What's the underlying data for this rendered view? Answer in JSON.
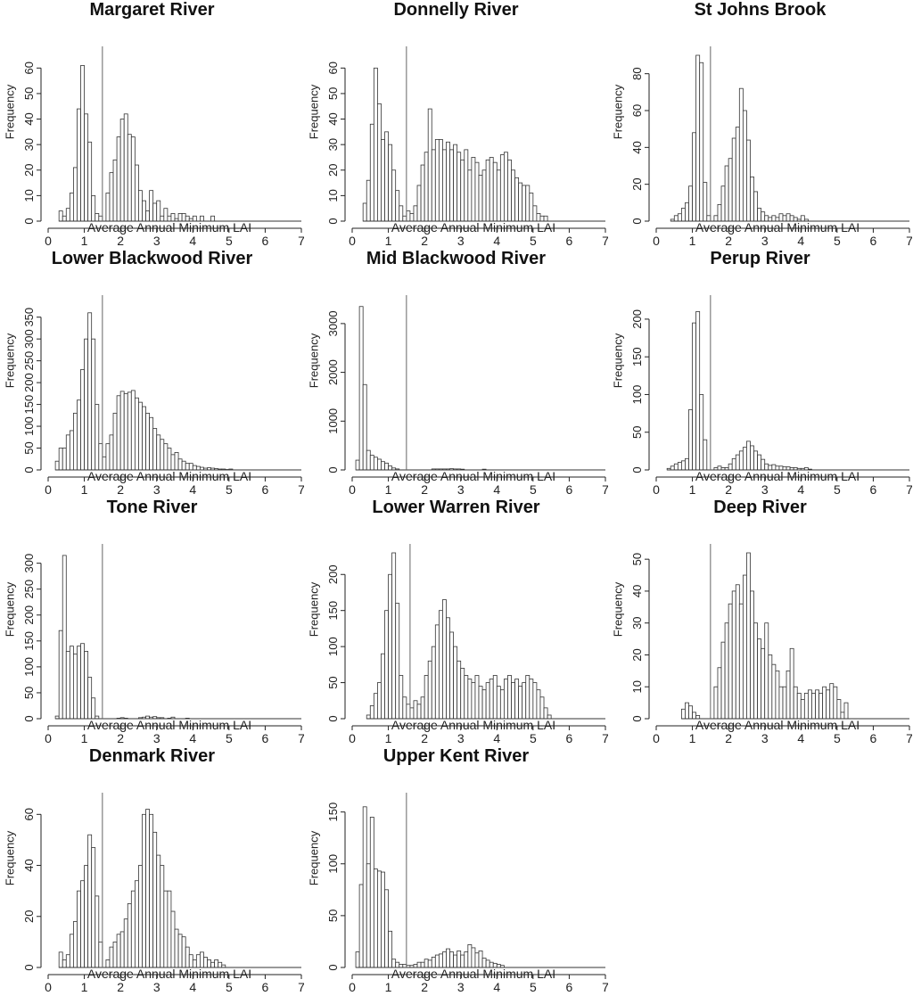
{
  "chart_data": [
    {
      "type": "bar",
      "title": "Margaret River",
      "xlabel": "Average Annual Minimum LAI",
      "ylabel": "Frequency",
      "xlim": [
        0,
        7
      ],
      "ylim": [
        0,
        65
      ],
      "yticks": [
        0,
        10,
        20,
        30,
        40,
        50,
        60
      ],
      "xticks": [
        0,
        1,
        2,
        3,
        4,
        5,
        6,
        7
      ],
      "bin_width": 0.1,
      "threshold": 1.5,
      "bins_start": [
        0.3,
        0.4,
        0.5,
        0.6,
        0.7,
        0.8,
        0.9,
        1.0,
        1.1,
        1.2,
        1.3,
        1.4,
        1.5,
        1.6,
        1.7,
        1.8,
        1.9,
        2.0,
        2.1,
        2.2,
        2.3,
        2.4,
        2.5,
        2.6,
        2.7,
        2.8,
        2.9,
        3.0,
        3.1,
        3.2,
        3.3,
        3.4,
        3.5,
        3.6,
        3.7,
        3.8,
        3.9,
        4.0,
        4.1,
        4.2,
        4.3,
        4.4,
        4.5
      ],
      "values": [
        4,
        2,
        5,
        11,
        21,
        44,
        61,
        42,
        31,
        10,
        3,
        2,
        0,
        11,
        19,
        24,
        33,
        40,
        42,
        34,
        33,
        22,
        12,
        8,
        4,
        12,
        7,
        8,
        2,
        5,
        2,
        3,
        1,
        3,
        3,
        2,
        1,
        2,
        0,
        2,
        0,
        0,
        2
      ]
    },
    {
      "type": "bar",
      "title": "Donnelly River",
      "xlabel": "Average Annual Minimum LAI",
      "ylabel": "Frequency",
      "xlim": [
        0,
        7
      ],
      "ylim": [
        0,
        65
      ],
      "yticks": [
        0,
        10,
        20,
        30,
        40,
        50,
        60
      ],
      "xticks": [
        0,
        1,
        2,
        3,
        4,
        5,
        6,
        7
      ],
      "bin_width": 0.1,
      "threshold": 1.5,
      "bins_start": [
        0.3,
        0.4,
        0.5,
        0.6,
        0.7,
        0.8,
        0.9,
        1.0,
        1.1,
        1.2,
        1.3,
        1.4,
        1.5,
        1.6,
        1.7,
        1.8,
        1.9,
        2.0,
        2.1,
        2.2,
        2.3,
        2.4,
        2.5,
        2.6,
        2.7,
        2.8,
        2.9,
        3.0,
        3.1,
        3.2,
        3.3,
        3.4,
        3.5,
        3.6,
        3.7,
        3.8,
        3.9,
        4.0,
        4.1,
        4.2,
        4.3,
        4.4,
        4.5,
        4.6,
        4.7,
        4.8,
        4.9,
        5.0,
        5.1,
        5.2,
        5.3
      ],
      "values": [
        7,
        16,
        38,
        60,
        46,
        32,
        35,
        30,
        20,
        12,
        6,
        2,
        4,
        3,
        6,
        14,
        22,
        27,
        44,
        28,
        32,
        32,
        28,
        31,
        28,
        30,
        27,
        24,
        28,
        20,
        25,
        23,
        18,
        20,
        24,
        25,
        23,
        20,
        26,
        27,
        24,
        20,
        17,
        15,
        14,
        14,
        11,
        6,
        3,
        2,
        2
      ]
    },
    {
      "type": "bar",
      "title": "St Johns Brook",
      "xlabel": "Average Annual Minimum LAI",
      "ylabel": "Frequency",
      "xlim": [
        0,
        7
      ],
      "ylim": [
        0,
        90
      ],
      "yticks": [
        0,
        20,
        40,
        60,
        80
      ],
      "xticks": [
        0,
        1,
        2,
        3,
        4,
        5,
        6,
        7
      ],
      "bin_width": 0.1,
      "threshold": 1.5,
      "bins_start": [
        0.4,
        0.5,
        0.6,
        0.7,
        0.8,
        0.9,
        1.0,
        1.1,
        1.2,
        1.3,
        1.4,
        1.5,
        1.6,
        1.7,
        1.8,
        1.9,
        2.0,
        2.1,
        2.2,
        2.3,
        2.4,
        2.5,
        2.6,
        2.7,
        2.8,
        2.9,
        3.0,
        3.1,
        3.2,
        3.3,
        3.4,
        3.5,
        3.6,
        3.7,
        3.8,
        3.9,
        4.0,
        4.1
      ],
      "values": [
        1,
        3,
        4,
        7,
        10,
        19,
        48,
        90,
        86,
        21,
        3,
        0,
        3,
        9,
        19,
        30,
        34,
        45,
        51,
        72,
        60,
        44,
        24,
        16,
        7,
        5,
        3,
        2,
        3,
        2,
        4,
        3,
        4,
        3,
        2,
        1,
        3,
        1
      ]
    },
    {
      "type": "bar",
      "title": "Lower Blackwood River",
      "xlabel": "Average Annual Minimum LAI",
      "ylabel": "Frequency",
      "xlim": [
        0,
        7
      ],
      "ylim": [
        0,
        380
      ],
      "yticks": [
        0,
        50,
        100,
        150,
        200,
        250,
        300,
        350
      ],
      "xticks": [
        0,
        1,
        2,
        3,
        4,
        5,
        6,
        7
      ],
      "bin_width": 0.1,
      "threshold": 1.5,
      "bins_start": [
        0.2,
        0.3,
        0.4,
        0.5,
        0.6,
        0.7,
        0.8,
        0.9,
        1.0,
        1.1,
        1.2,
        1.3,
        1.4,
        1.5,
        1.6,
        1.7,
        1.8,
        1.9,
        2.0,
        2.1,
        2.2,
        2.3,
        2.4,
        2.5,
        2.6,
        2.7,
        2.8,
        2.9,
        3.0,
        3.1,
        3.2,
        3.3,
        3.4,
        3.5,
        3.6,
        3.7,
        3.8,
        3.9,
        4.0,
        4.1,
        4.2,
        4.3,
        4.4,
        4.5,
        4.6,
        4.7,
        4.8,
        4.9,
        5.0
      ],
      "values": [
        20,
        50,
        50,
        80,
        90,
        130,
        160,
        230,
        300,
        360,
        300,
        150,
        60,
        30,
        60,
        80,
        130,
        170,
        180,
        175,
        178,
        182,
        165,
        155,
        145,
        130,
        120,
        95,
        80,
        70,
        60,
        50,
        35,
        40,
        25,
        20,
        15,
        15,
        10,
        8,
        6,
        4,
        5,
        4,
        3,
        2,
        2,
        1,
        2
      ]
    },
    {
      "type": "bar",
      "title": "Mid Blackwood River",
      "xlabel": "Average Annual Minimum LAI",
      "ylabel": "Frequency",
      "xlim": [
        0,
        7
      ],
      "ylim": [
        0,
        3400
      ],
      "yticks": [
        0,
        1000,
        2000,
        3000
      ],
      "xticks": [
        0,
        1,
        2,
        3,
        4,
        5,
        6,
        7
      ],
      "bin_width": 0.1,
      "threshold": 1.5,
      "bins_start": [
        0.1,
        0.2,
        0.3,
        0.4,
        0.5,
        0.6,
        0.7,
        0.8,
        0.9,
        1.0,
        1.1,
        1.2,
        2.2,
        2.3,
        2.4,
        2.5,
        2.6,
        2.7,
        2.8,
        2.9,
        3.0,
        3.6
      ],
      "values": [
        200,
        3350,
        1750,
        400,
        300,
        260,
        220,
        170,
        140,
        80,
        40,
        20,
        20,
        20,
        20,
        20,
        20,
        25,
        20,
        20,
        15,
        15
      ]
    },
    {
      "type": "bar",
      "title": "Perup River",
      "xlabel": "Average Annual Minimum LAI",
      "ylabel": "Frequency",
      "xlim": [
        0,
        7
      ],
      "ylim": [
        0,
        220
      ],
      "yticks": [
        0,
        50,
        100,
        150,
        200
      ],
      "xticks": [
        0,
        1,
        2,
        3,
        4,
        5,
        6,
        7
      ],
      "bin_width": 0.1,
      "threshold": 1.5,
      "bins_start": [
        0.3,
        0.4,
        0.5,
        0.6,
        0.7,
        0.8,
        0.9,
        1.0,
        1.1,
        1.2,
        1.3,
        1.6,
        1.7,
        1.8,
        1.9,
        2.0,
        2.1,
        2.2,
        2.3,
        2.4,
        2.5,
        2.6,
        2.7,
        2.8,
        2.9,
        3.0,
        3.1,
        3.2,
        3.3,
        3.4,
        3.5,
        3.6,
        3.7,
        3.8,
        3.9,
        4.0,
        4.1,
        4.2
      ],
      "values": [
        2,
        5,
        8,
        10,
        12,
        15,
        80,
        195,
        210,
        100,
        40,
        3,
        5,
        3,
        3,
        8,
        15,
        20,
        25,
        30,
        38,
        32,
        25,
        20,
        14,
        8,
        6,
        7,
        5,
        5,
        4,
        4,
        3,
        3,
        2,
        2,
        3,
        1
      ]
    },
    {
      "type": "bar",
      "title": "Tone River",
      "xlabel": "Average Annual Minimum LAI",
      "ylabel": "Frequency",
      "xlim": [
        0,
        7
      ],
      "ylim": [
        0,
        320
      ],
      "yticks": [
        0,
        50,
        100,
        150,
        200,
        250,
        300
      ],
      "xticks": [
        0,
        1,
        2,
        3,
        4,
        5,
        6,
        7
      ],
      "bin_width": 0.1,
      "threshold": 1.5,
      "bins_start": [
        0.2,
        0.3,
        0.4,
        0.5,
        0.6,
        0.7,
        0.8,
        0.9,
        1.0,
        1.1,
        1.2,
        1.3,
        1.9,
        2.0,
        2.1,
        2.5,
        2.6,
        2.7,
        2.8,
        2.9,
        3.0,
        3.1,
        3.3,
        3.4,
        3.8
      ],
      "values": [
        5,
        170,
        315,
        130,
        140,
        125,
        140,
        145,
        130,
        80,
        40,
        5,
        1,
        2,
        1,
        2,
        3,
        5,
        3,
        4,
        2,
        2,
        1,
        3,
        1
      ]
    },
    {
      "type": "bar",
      "title": "Lower Warren River",
      "xlabel": "Average Annual Minimum LAI",
      "ylabel": "Frequency",
      "xlim": [
        0,
        7
      ],
      "ylim": [
        0,
        230
      ],
      "yticks": [
        0,
        50,
        100,
        150,
        200
      ],
      "xticks": [
        0,
        1,
        2,
        3,
        4,
        5,
        6,
        7
      ],
      "bin_width": 0.1,
      "threshold": 1.6,
      "bins_start": [
        0.4,
        0.5,
        0.6,
        0.7,
        0.8,
        0.9,
        1.0,
        1.1,
        1.2,
        1.3,
        1.4,
        1.5,
        1.6,
        1.7,
        1.8,
        1.9,
        2.0,
        2.1,
        2.2,
        2.3,
        2.4,
        2.5,
        2.6,
        2.7,
        2.8,
        2.9,
        3.0,
        3.1,
        3.2,
        3.3,
        3.4,
        3.5,
        3.6,
        3.7,
        3.8,
        3.9,
        4.0,
        4.1,
        4.2,
        4.3,
        4.4,
        4.5,
        4.6,
        4.7,
        4.8,
        4.9,
        5.0,
        5.1,
        5.2,
        5.3,
        5.4
      ],
      "values": [
        5,
        18,
        35,
        50,
        90,
        150,
        200,
        230,
        160,
        60,
        30,
        20,
        15,
        25,
        20,
        30,
        60,
        80,
        100,
        130,
        150,
        165,
        140,
        120,
        100,
        80,
        70,
        60,
        55,
        50,
        60,
        45,
        40,
        50,
        55,
        60,
        45,
        40,
        55,
        60,
        50,
        55,
        45,
        50,
        60,
        55,
        50,
        40,
        30,
        15,
        5
      ]
    },
    {
      "type": "bar",
      "title": "Deep River",
      "xlabel": "Average Annual Minimum LAI",
      "ylabel": "Frequency",
      "xlim": [
        0,
        7
      ],
      "ylim": [
        0,
        52
      ],
      "yticks": [
        0,
        10,
        20,
        30,
        40,
        50
      ],
      "xticks": [
        0,
        1,
        2,
        3,
        4,
        5,
        6,
        7
      ],
      "bin_width": 0.1,
      "threshold": 1.5,
      "bins_start": [
        0.7,
        0.8,
        0.9,
        1.0,
        1.1,
        1.6,
        1.7,
        1.8,
        1.9,
        2.0,
        2.1,
        2.2,
        2.3,
        2.4,
        2.5,
        2.6,
        2.7,
        2.8,
        2.9,
        3.0,
        3.1,
        3.2,
        3.3,
        3.4,
        3.5,
        3.6,
        3.7,
        3.8,
        3.9,
        4.0,
        4.1,
        4.2,
        4.3,
        4.4,
        4.5,
        4.6,
        4.7,
        4.8,
        4.9,
        5.0,
        5.1,
        5.2
      ],
      "values": [
        3,
        5,
        4,
        2,
        1,
        10,
        16,
        24,
        30,
        36,
        40,
        42,
        36,
        45,
        52,
        40,
        30,
        25,
        22,
        30,
        20,
        17,
        15,
        10,
        10,
        15,
        22,
        10,
        8,
        6,
        8,
        9,
        8,
        9,
        8,
        10,
        9,
        11,
        10,
        6,
        2,
        5
      ]
    },
    {
      "type": "bar",
      "title": "Denmark River",
      "xlabel": "Average Annual Minimum LAI",
      "ylabel": "Frequency",
      "xlim": [
        0,
        7
      ],
      "ylim": [
        0,
        65
      ],
      "yticks": [
        0,
        20,
        40,
        60
      ],
      "xticks": [
        0,
        1,
        2,
        3,
        4,
        5,
        6,
        7
      ],
      "bin_width": 0.1,
      "threshold": 1.5,
      "bins_start": [
        0.3,
        0.4,
        0.5,
        0.6,
        0.7,
        0.8,
        0.9,
        1.0,
        1.1,
        1.2,
        1.3,
        1.4,
        1.6,
        1.7,
        1.8,
        1.9,
        2.0,
        2.1,
        2.2,
        2.3,
        2.4,
        2.5,
        2.6,
        2.7,
        2.8,
        2.9,
        3.0,
        3.1,
        3.2,
        3.3,
        3.4,
        3.5,
        3.6,
        3.7,
        3.8,
        3.9,
        4.0,
        4.1,
        4.2,
        4.3,
        4.4,
        4.5,
        4.6,
        4.7,
        4.8
      ],
      "values": [
        6,
        3,
        5,
        13,
        18,
        30,
        34,
        40,
        52,
        47,
        28,
        10,
        3,
        8,
        10,
        13,
        14,
        19,
        25,
        30,
        34,
        40,
        60,
        62,
        60,
        53,
        44,
        40,
        30,
        30,
        22,
        15,
        13,
        12,
        8,
        5,
        3,
        5,
        6,
        4,
        3,
        2,
        3,
        2,
        1
      ]
    },
    {
      "type": "bar",
      "title": "Upper Kent River",
      "xlabel": "Average Annual Minimum LAI",
      "ylabel": "Frequency",
      "xlim": [
        0,
        7
      ],
      "ylim": [
        0,
        160
      ],
      "yticks": [
        0,
        50,
        100,
        150
      ],
      "xticks": [
        0,
        1,
        2,
        3,
        4,
        5,
        6,
        7
      ],
      "bin_width": 0.1,
      "threshold": 1.5,
      "bins_start": [
        0.1,
        0.2,
        0.3,
        0.4,
        0.5,
        0.6,
        0.7,
        0.8,
        0.9,
        1.0,
        1.1,
        1.2,
        1.3,
        1.4,
        1.5,
        1.6,
        1.7,
        1.8,
        1.9,
        2.0,
        2.1,
        2.2,
        2.3,
        2.4,
        2.5,
        2.6,
        2.7,
        2.8,
        2.9,
        3.0,
        3.1,
        3.2,
        3.3,
        3.4,
        3.5,
        3.6,
        3.7,
        3.8,
        3.9,
        4.0,
        4.1
      ],
      "values": [
        15,
        80,
        155,
        100,
        145,
        95,
        93,
        92,
        75,
        35,
        8,
        5,
        3,
        3,
        2,
        2,
        3,
        5,
        5,
        8,
        7,
        10,
        12,
        13,
        15,
        18,
        15,
        12,
        16,
        12,
        15,
        22,
        19,
        14,
        16,
        9,
        7,
        5,
        4,
        3,
        2
      ]
    }
  ]
}
